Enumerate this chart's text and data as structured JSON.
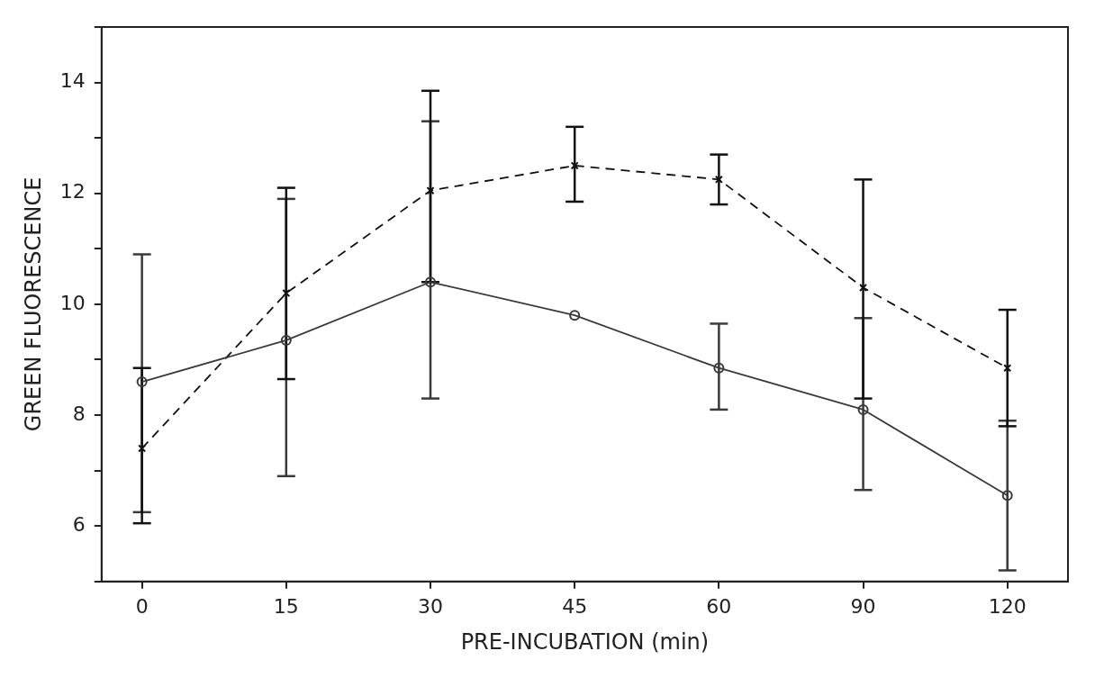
{
  "chart_data": {
    "type": "line",
    "xlabel": "PRE-INCUBATION (min)",
    "ylabel": "GREEN FLUORESCENCE",
    "categories": [
      "0",
      "15",
      "30",
      "45",
      "60",
      "90",
      "120"
    ],
    "ylim": [
      5,
      15
    ],
    "yticks": [
      {
        "value": 5,
        "label": null
      },
      6,
      {
        "value": 7,
        "label": null
      },
      8,
      {
        "value": 9,
        "label": null
      },
      10,
      {
        "value": 11,
        "label": null
      },
      12,
      {
        "value": 13,
        "label": null
      },
      14,
      {
        "value": 15,
        "label": null
      }
    ],
    "grid": false,
    "legend": false,
    "series": [
      {
        "color": "#3a3a3a",
        "marker": "circle",
        "line_style": "solid",
        "values": [
          8.6,
          9.35,
          10.4,
          9.8,
          8.85,
          8.1,
          6.55
        ],
        "errors": [
          [
            6.25,
            10.9
          ],
          [
            6.9,
            11.9
          ],
          [
            8.3,
            13.3
          ],
          null,
          [
            8.1,
            9.65
          ],
          [
            6.65,
            9.75
          ],
          [
            5.2,
            7.9
          ]
        ]
      },
      {
        "color": "#111111",
        "marker": "cross",
        "line_style": "dashed",
        "values": [
          7.4,
          10.2,
          12.05,
          12.5,
          12.25,
          10.3,
          8.85
        ],
        "errors": [
          [
            6.05,
            8.85
          ],
          [
            8.65,
            12.1
          ],
          [
            10.4,
            13.85
          ],
          [
            11.85,
            13.2
          ],
          [
            11.8,
            12.7
          ],
          [
            8.3,
            12.25
          ],
          [
            7.8,
            9.9
          ]
        ]
      }
    ]
  }
}
